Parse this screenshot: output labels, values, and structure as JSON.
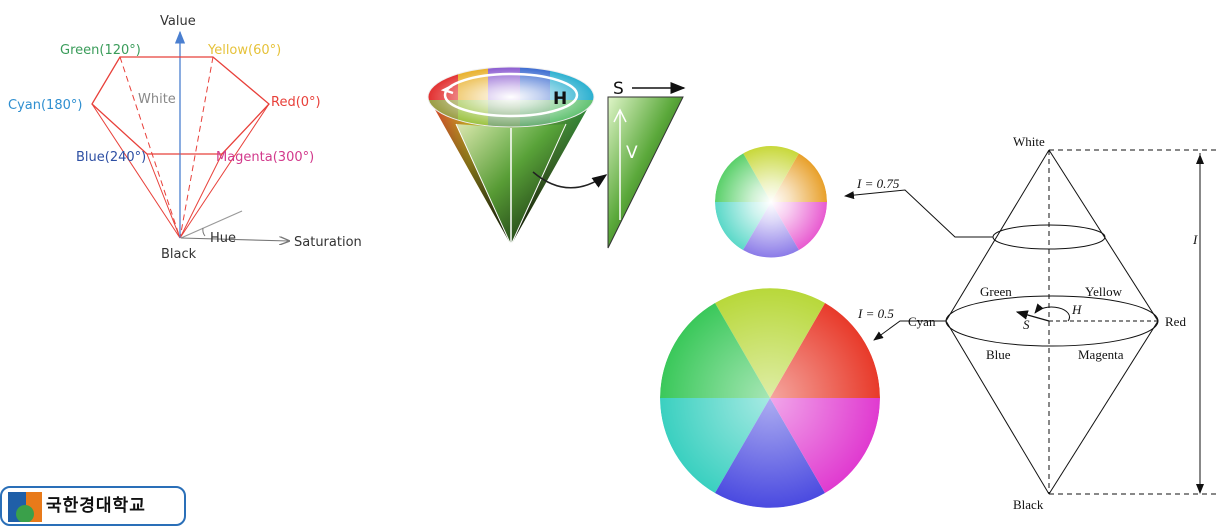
{
  "hexcone": {
    "value": "Value",
    "green": "Green(120°)",
    "yellow": "Yellow(60°)",
    "cyan": "Cyan(180°)",
    "white": "White",
    "red": "Red(0°)",
    "blue": "Blue(240°)",
    "magenta": "Magenta(300°)",
    "black": "Black",
    "hue": "Hue",
    "saturation": "Saturation",
    "colors": {
      "green": "#3a9c5a",
      "yellow": "#e6c23a",
      "cyan": "#2f8fd0",
      "red": "#e8403a",
      "blue": "#2d4fa3",
      "magenta": "#d23a8c",
      "edge": "#e8403a"
    }
  },
  "hsv_cone": {
    "h": "H",
    "s": "S",
    "v": "V"
  },
  "hsi": {
    "white": "White",
    "black": "Black",
    "green": "Green",
    "yellow": "Yellow",
    "cyan": "Cyan",
    "red": "Red",
    "blue": "Blue",
    "magenta": "Magenta",
    "h": "H",
    "s": "S",
    "i": "I",
    "i_075": "I = 0.75",
    "i_05": "I = 0.5"
  },
  "logo": {
    "text": "국한경대학교"
  }
}
